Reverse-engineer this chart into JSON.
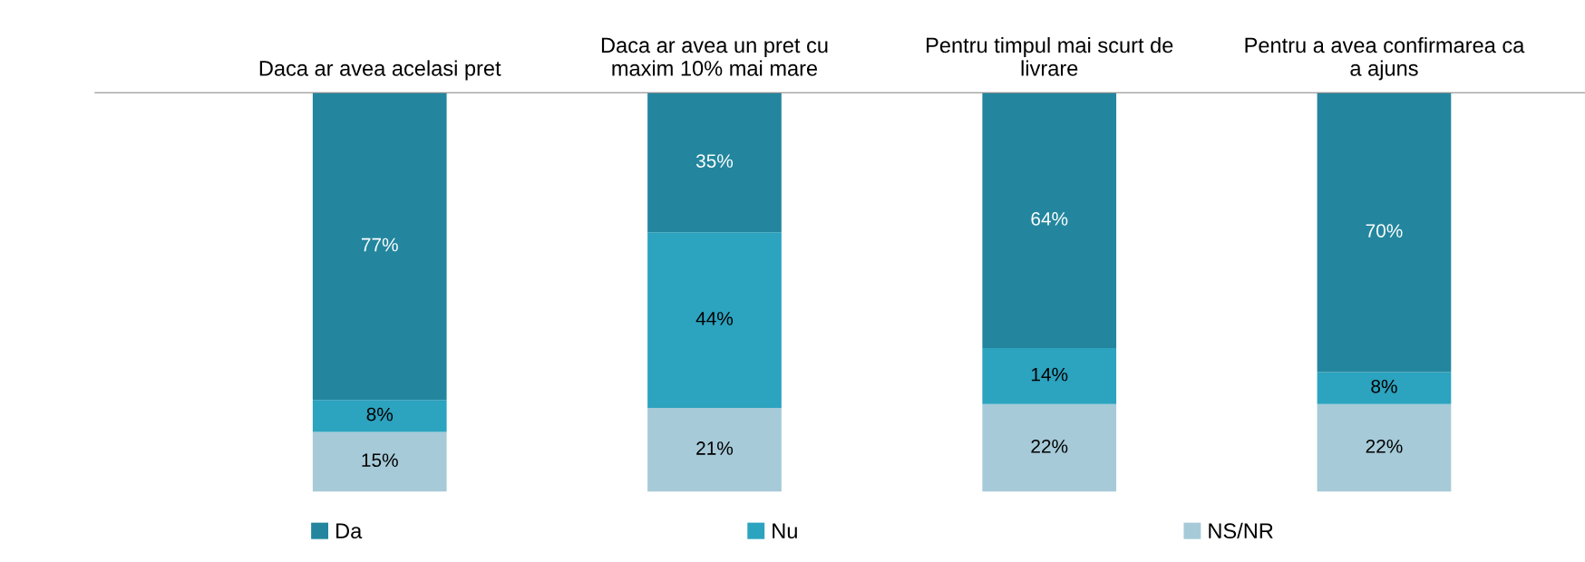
{
  "chart_data": {
    "type": "bar",
    "stacked": true,
    "categories": [
      "Daca ar avea acelasi pret",
      "Daca ar avea un pret cu\nmaxim 10% mai mare",
      "Pentru timpul mai scurt de\nlivrare",
      "Pentru a avea confirmarea ca\na ajuns"
    ],
    "series": [
      {
        "name": "NS/NR",
        "color": "#a6cad8",
        "values": [
          15,
          21,
          22,
          22
        ],
        "value_labels": [
          "15%",
          "21%",
          "22%",
          "22%"
        ]
      },
      {
        "name": "Nu",
        "color": "#2ca3bf",
        "values": [
          8,
          44,
          14,
          8
        ],
        "value_labels": [
          "8%",
          "44%",
          "14%",
          "8%"
        ]
      },
      {
        "name": "Da",
        "color": "#23869e",
        "values": [
          77,
          35,
          64,
          70
        ],
        "value_labels": [
          "77%",
          "35%",
          "64%",
          "70%"
        ]
      }
    ],
    "ylim": [
      0,
      100
    ],
    "tick_labels": "x",
    "legend": "bottom",
    "grid": false
  }
}
